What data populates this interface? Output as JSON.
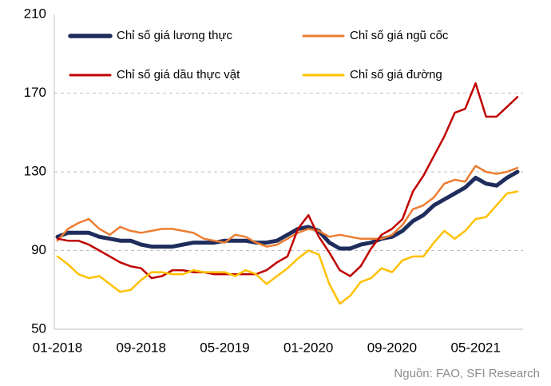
{
  "chart_data": {
    "type": "line",
    "source": "Nguồn: FAO, SFI Research",
    "categories": [
      "01-2018",
      null,
      null,
      null,
      null,
      null,
      null,
      null,
      "09-2018",
      null,
      null,
      null,
      null,
      null,
      null,
      null,
      "05-2019",
      null,
      null,
      null,
      null,
      null,
      null,
      null,
      "01-2020",
      null,
      null,
      null,
      null,
      null,
      null,
      null,
      "09-2020",
      null,
      null,
      null,
      null,
      null,
      null,
      null,
      "05-2021",
      null,
      null,
      null,
      null
    ],
    "series": [
      {
        "name": "Chỉ số giá lương thực",
        "color": "#1f2d5c",
        "width": 5,
        "values": [
          97,
          99,
          99,
          99,
          97,
          96,
          95,
          95,
          93,
          92,
          92,
          92,
          93,
          94,
          94,
          94,
          95,
          95,
          95,
          94,
          94,
          95,
          98,
          101,
          102,
          100,
          94,
          91,
          91,
          93,
          94,
          96,
          97,
          100,
          105,
          108,
          113,
          116,
          119,
          122,
          127,
          124,
          123,
          127,
          130
        ]
      },
      {
        "name": "Chỉ số giá ngũ cốc",
        "color": "#ed7d31",
        "width": 2.5,
        "values": [
          95,
          101,
          104,
          106,
          101,
          98,
          102,
          100,
          99,
          100,
          101,
          101,
          100,
          99,
          96,
          95,
          94,
          98,
          97,
          94,
          92,
          93,
          96,
          99,
          101,
          100,
          97,
          98,
          97,
          96,
          96,
          96,
          98,
          103,
          111,
          113,
          117,
          124,
          126,
          125,
          133,
          130,
          129,
          130,
          132
        ]
      },
      {
        "name": "Chỉ số giá dầu thực vật",
        "color": "#c00000",
        "width": 2.5,
        "values": [
          96,
          95,
          95,
          93,
          90,
          87,
          84,
          82,
          81,
          76,
          77,
          80,
          80,
          79,
          79,
          78,
          78,
          78,
          78,
          78,
          80,
          84,
          87,
          101,
          108,
          97,
          89,
          80,
          77,
          82,
          91,
          98,
          101,
          106,
          120,
          128,
          138,
          148,
          160,
          162,
          175,
          158,
          158,
          163,
          168
        ]
      },
      {
        "name": "Chỉ số giá đường",
        "color": "#ffc000",
        "width": 2.5,
        "values": [
          87,
          83,
          78,
          76,
          77,
          73,
          69,
          70,
          75,
          79,
          79,
          78,
          78,
          80,
          79,
          79,
          79,
          77,
          80,
          78,
          73,
          77,
          81,
          86,
          90,
          88,
          73,
          63,
          67,
          74,
          76,
          81,
          79,
          85,
          87,
          87,
          94,
          100,
          96,
          100,
          106,
          107,
          113,
          119,
          120
        ]
      }
    ],
    "ylim": [
      50,
      210
    ],
    "yticks": [
      50,
      90,
      130,
      170,
      210
    ],
    "grid": true
  }
}
